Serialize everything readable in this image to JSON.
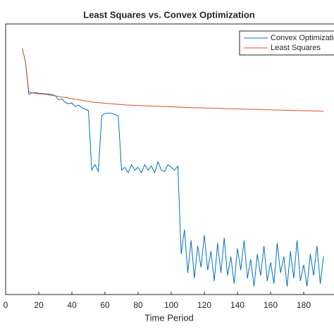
{
  "chart_data": {
    "type": "line",
    "title": "Least Squares vs. Convex Optimization",
    "x_label": "Time Period",
    "x": [
      10,
      12,
      14,
      16,
      18,
      20,
      22,
      24,
      26,
      28,
      30,
      32,
      34,
      36,
      38,
      40,
      42,
      44,
      46,
      48,
      50,
      52,
      54,
      56,
      58,
      60,
      62,
      64,
      66,
      68,
      70,
      72,
      74,
      76,
      78,
      80,
      82,
      84,
      86,
      88,
      90,
      92,
      94,
      96,
      98,
      100,
      102,
      104,
      106,
      108,
      110,
      112,
      114,
      116,
      118,
      120,
      122,
      124,
      126,
      128,
      130,
      132,
      134,
      136,
      138,
      140,
      142,
      144,
      146,
      148,
      150,
      152,
      154,
      156,
      158,
      160,
      162,
      164,
      166,
      168,
      170,
      172,
      174,
      176,
      178,
      180,
      182,
      184,
      186,
      188,
      190,
      192
    ],
    "series": [
      {
        "name": "Convex Optimization",
        "color": "#0072BD",
        "values": [
          91,
          86,
          74,
          74.5,
          74.6,
          74.4,
          74.3,
          74.2,
          74.1,
          73.9,
          73.5,
          72,
          72.3,
          71,
          70.5,
          70.8,
          69.5,
          70,
          69,
          68.5,
          68,
          46,
          48,
          45.5,
          66,
          67,
          67,
          67,
          66.5,
          66,
          46,
          47,
          45,
          48,
          46,
          47,
          45,
          48,
          46,
          47.5,
          45,
          49,
          46,
          45.5,
          48,
          47,
          46,
          47.5,
          15,
          24,
          8,
          20,
          6,
          18,
          10,
          22,
          9,
          16,
          5,
          19,
          8,
          21,
          7,
          14,
          4,
          17,
          9,
          20,
          6,
          13,
          3,
          15,
          7,
          18,
          5,
          12,
          4,
          19,
          8,
          14,
          3,
          16,
          6,
          20,
          5,
          11,
          3,
          15,
          7,
          18,
          4,
          14
        ]
      },
      {
        "name": "Least Squares",
        "color": "#D95319",
        "values": [
          91,
          86,
          75,
          74.5,
          74.3,
          74.2,
          74.1,
          74,
          73.8,
          73.6,
          73.4,
          73.2,
          73,
          72.8,
          72.6,
          72.4,
          72.2,
          72,
          71.8,
          71.6,
          71.4,
          71.2,
          71,
          70.9,
          70.8,
          70.7,
          70.6,
          70.5,
          70.4,
          70.3,
          70.2,
          70.1,
          70,
          70,
          69.9,
          69.9,
          69.8,
          69.8,
          69.7,
          69.7,
          69.6,
          69.6,
          69.5,
          69.5,
          69.4,
          69.4,
          69.3,
          69.3,
          69.2,
          69.2,
          69.1,
          69.1,
          69,
          69,
          69,
          68.9,
          68.9,
          68.9,
          68.8,
          68.8,
          68.8,
          68.7,
          68.7,
          68.7,
          68.6,
          68.6,
          68.6,
          68.5,
          68.5,
          68.5,
          68.4,
          68.4,
          68.4,
          68.3,
          68.3,
          68.3,
          68.2,
          68.2,
          68.2,
          68.1,
          68.1,
          68.1,
          68,
          68,
          68,
          67.9,
          67.9,
          67.9,
          67.8,
          67.8,
          67.8,
          67.7
        ]
      }
    ],
    "xlim": [
      0,
      197
    ],
    "xticks": [
      0,
      20,
      40,
      60,
      80,
      100,
      120,
      140,
      160,
      180
    ],
    "ylim": [
      0,
      100
    ],
    "legend": "top-right"
  }
}
